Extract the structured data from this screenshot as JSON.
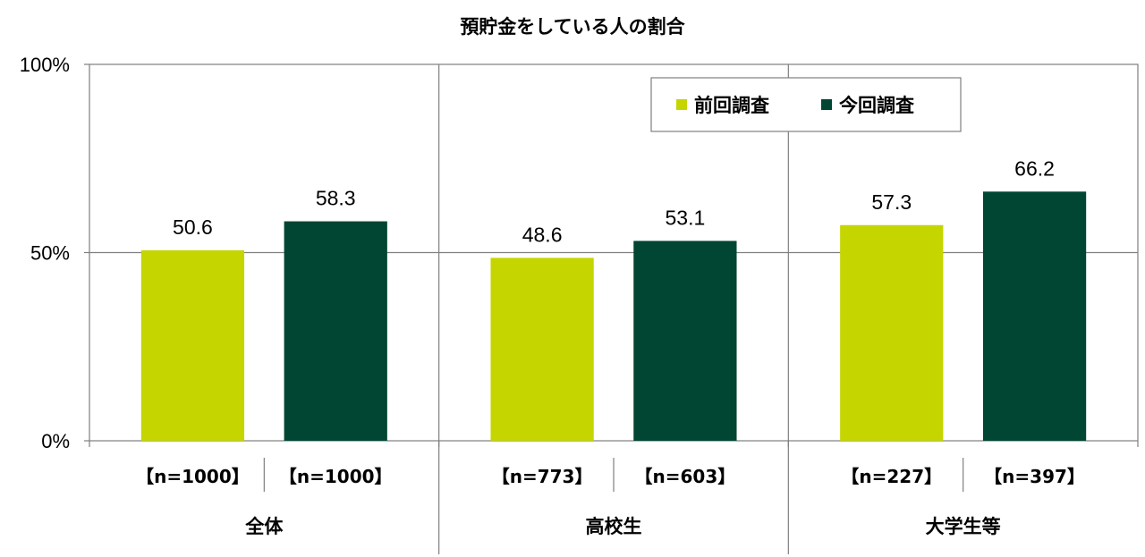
{
  "chart_data": {
    "type": "bar",
    "title": "預貯金をしている人の割合",
    "ylim": [
      0,
      100
    ],
    "yticks": [
      "0%",
      "50%",
      "100%"
    ],
    "grid": true,
    "legend_position": "top-right",
    "groups": [
      {
        "label": "全体",
        "n": [
          "【n=1000】",
          "【n=1000】"
        ]
      },
      {
        "label": "高校生",
        "n": [
          "【n=773】",
          "【n=603】"
        ]
      },
      {
        "label": "大学生等",
        "n": [
          "【n=227】",
          "【n=397】"
        ]
      }
    ],
    "categories": [
      "全体",
      "高校生",
      "大学生等"
    ],
    "series": [
      {
        "name": "前回調査",
        "color": "#c5d500",
        "values": [
          50.6,
          48.6,
          57.3
        ],
        "labels": [
          "50.6",
          "48.6",
          "57.3"
        ]
      },
      {
        "name": "今回調査",
        "color": "#004632",
        "values": [
          58.3,
          53.1,
          66.2
        ],
        "labels": [
          "58.3",
          "53.1",
          "66.2"
        ]
      }
    ]
  }
}
